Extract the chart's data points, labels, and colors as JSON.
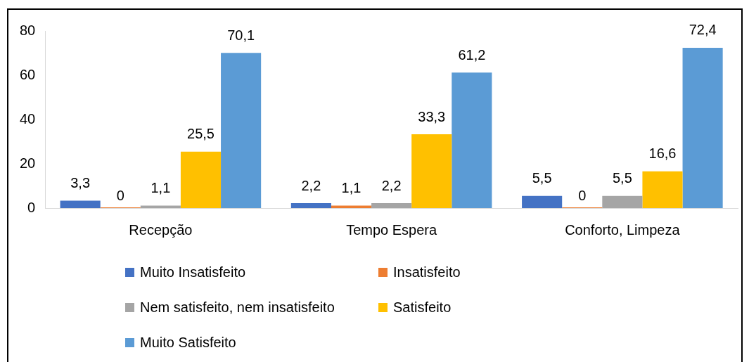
{
  "chart_data": {
    "type": "bar",
    "categories": [
      "Recepção",
      "Tempo Espera",
      "Conforto, Limpeza"
    ],
    "series": [
      {
        "name": "Muito Insatisfeito",
        "color": "#4472c4",
        "values": [
          3.3,
          2.2,
          5.5
        ],
        "value_labels": [
          "3,3",
          "2,2",
          "5,5"
        ]
      },
      {
        "name": "Insatisfeito",
        "color": "#ed7d31",
        "values": [
          0,
          1.1,
          0
        ],
        "value_labels": [
          "0",
          "1,1",
          "0"
        ]
      },
      {
        "name": "Nem satisfeito, nem insatisfeito",
        "color": "#a5a5a5",
        "values": [
          1.1,
          2.2,
          5.5
        ],
        "value_labels": [
          "1,1",
          "2,2",
          "5,5"
        ]
      },
      {
        "name": "Satisfeito",
        "color": "#ffc000",
        "values": [
          25.5,
          33.3,
          16.6
        ],
        "value_labels": [
          "25,5",
          "33,3",
          "16,6"
        ]
      },
      {
        "name": "Muito Satisfeito",
        "color": "#5b9bd5",
        "values": [
          70.1,
          61.2,
          72.4
        ],
        "value_labels": [
          "70,1",
          "61,2",
          "72,4"
        ]
      }
    ],
    "ylim": [
      0,
      80
    ],
    "yticks": [
      0,
      20,
      40,
      60,
      80
    ],
    "grid": false,
    "legend": "bottom"
  }
}
